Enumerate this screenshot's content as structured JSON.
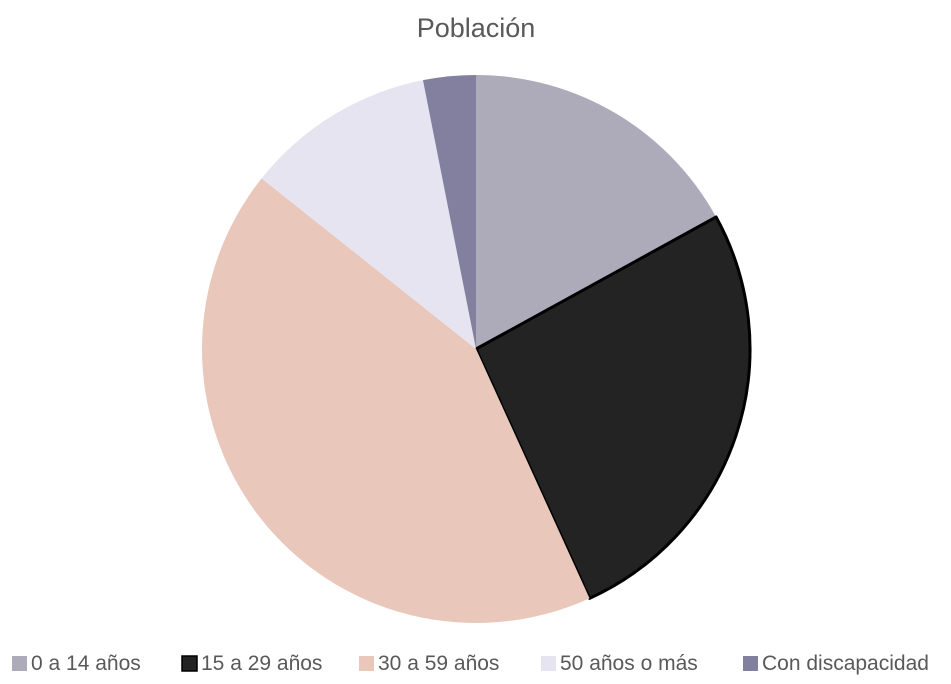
{
  "chart_data": {
    "type": "pie",
    "title": "Población",
    "legend_position": "bottom",
    "slices": [
      {
        "label": "0 a 14 años",
        "value": 17.0,
        "color": "#ADABBA"
      },
      {
        "label": "15 a 29 años",
        "value": 26.2,
        "color": "#232323"
      },
      {
        "label": "30 a 59 años",
        "value": 42.5,
        "color": "#E9C8BB"
      },
      {
        "label": "50 años o más",
        "value": 11.2,
        "color": "#E6E4F0"
      },
      {
        "label": "Con discapacidad",
        "value": 3.1,
        "color": "#837F9E"
      }
    ]
  }
}
